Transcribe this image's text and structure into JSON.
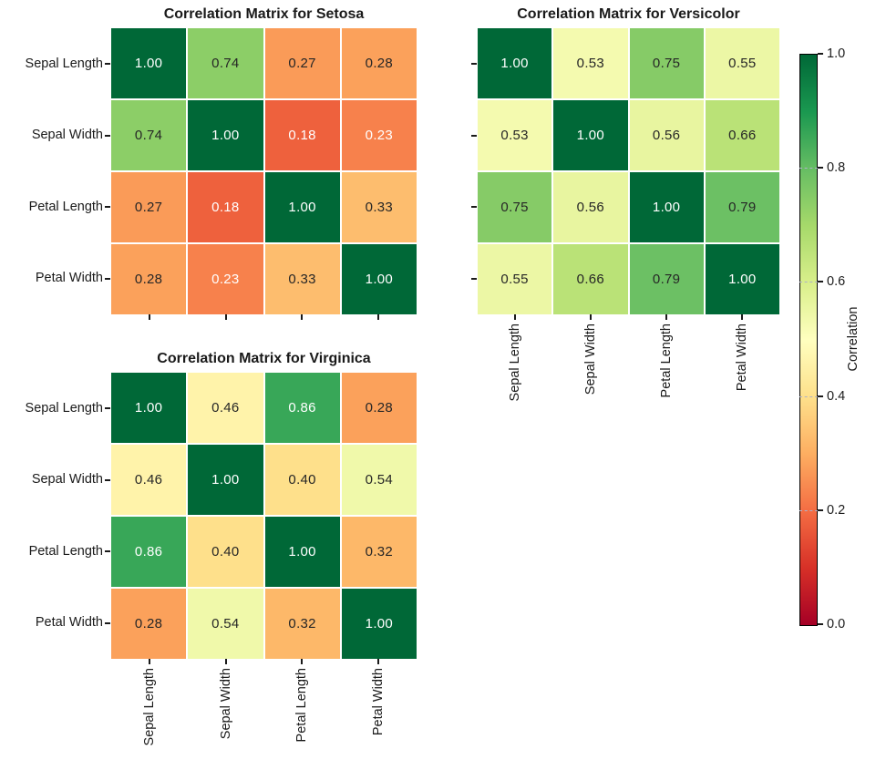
{
  "figure": {
    "background": "#ffffff"
  },
  "chart_data": [
    {
      "type": "heatmap",
      "title": "Correlation Matrix for Setosa",
      "x_labels": [
        "Sepal Length",
        "Sepal Width",
        "Petal Length",
        "Petal Width"
      ],
      "y_labels": [
        "Sepal Length",
        "Sepal Width",
        "Petal Length",
        "Petal Width"
      ],
      "show_x_tick_labels": false,
      "show_y_tick_labels": true,
      "values": [
        [
          1.0,
          0.74,
          0.27,
          0.28
        ],
        [
          0.74,
          1.0,
          0.18,
          0.23
        ],
        [
          0.27,
          0.18,
          1.0,
          0.33
        ],
        [
          0.28,
          0.23,
          0.33,
          1.0
        ]
      ],
      "value_decimals": 2,
      "vmin": 0.0,
      "vmax": 1.0
    },
    {
      "type": "heatmap",
      "title": "Correlation Matrix for Versicolor",
      "x_labels": [
        "Sepal Length",
        "Sepal Width",
        "Petal Length",
        "Petal Width"
      ],
      "y_labels": [
        "Sepal Length",
        "Sepal Width",
        "Petal Length",
        "Petal Width"
      ],
      "show_x_tick_labels": true,
      "show_y_tick_labels": false,
      "values": [
        [
          1.0,
          0.53,
          0.75,
          0.55
        ],
        [
          0.53,
          1.0,
          0.56,
          0.66
        ],
        [
          0.75,
          0.56,
          1.0,
          0.79
        ],
        [
          0.55,
          0.66,
          0.79,
          1.0
        ]
      ],
      "value_decimals": 2,
      "vmin": 0.0,
      "vmax": 1.0
    },
    {
      "type": "heatmap",
      "title": "Correlation Matrix for Virginica",
      "x_labels": [
        "Sepal Length",
        "Sepal Width",
        "Petal Length",
        "Petal Width"
      ],
      "y_labels": [
        "Sepal Length",
        "Sepal Width",
        "Petal Length",
        "Petal Width"
      ],
      "show_x_tick_labels": true,
      "show_y_tick_labels": true,
      "values": [
        [
          1.0,
          0.46,
          0.86,
          0.28
        ],
        [
          0.46,
          1.0,
          0.4,
          0.54
        ],
        [
          0.86,
          0.4,
          1.0,
          0.32
        ],
        [
          0.28,
          0.54,
          0.32,
          1.0
        ]
      ],
      "value_decimals": 2,
      "vmin": 0.0,
      "vmax": 1.0
    }
  ],
  "colorbar": {
    "label": "Correlation",
    "tick_labels": [
      "1.0",
      "0.8",
      "0.6",
      "0.4",
      "0.2",
      "0.0"
    ],
    "tick_values": [
      1.0,
      0.8,
      0.6,
      0.4,
      0.2,
      0.0
    ],
    "gridline_values": [
      0.8,
      0.6,
      0.4,
      0.2
    ],
    "vmin": 0.0,
    "vmax": 1.0,
    "colormap_name": "RdYlGn",
    "colormap_anchors": [
      "#a50026",
      "#d73027",
      "#f46d43",
      "#fdae61",
      "#fee08b",
      "#ffffbf",
      "#d9ef8b",
      "#a6d96a",
      "#66bd63",
      "#1a9850",
      "#006837"
    ]
  },
  "style": {
    "annotation_dark_text": "#262626",
    "annotation_light_text": "#ffffff",
    "tick_color": "#1a1a1a",
    "title_color": "#1a1a1a",
    "cell_gap_color": "#ffffff",
    "colorbar_gridline_color": "#adb0c9",
    "colorbar_outline_color": "#000000"
  }
}
